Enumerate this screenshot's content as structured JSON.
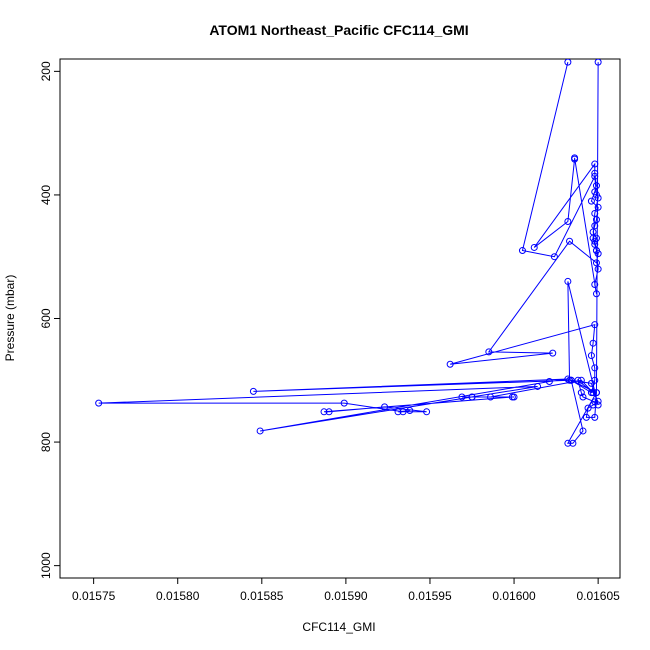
{
  "chart_data": {
    "type": "line",
    "title": "ATOM1 Northeast_Pacific CFC114_GMI",
    "xlabel": "CFC114_GMI",
    "ylabel": "Pressure (mbar)",
    "xlim": [
      0.01573,
      0.016063
    ],
    "ylim": [
      1020,
      180
    ],
    "y_reversed": true,
    "x_ticks": [
      "0.01575",
      "0.01580",
      "0.01585",
      "0.01590",
      "0.01595",
      "0.01600",
      "0.01605"
    ],
    "x_tick_values": [
      0.01575,
      0.0158,
      0.01585,
      0.0159,
      0.01595,
      0.016,
      0.01605
    ],
    "y_ticks": [
      "200",
      "400",
      "600",
      "800",
      "1000"
    ],
    "y_tick_values": [
      200,
      400,
      600,
      800,
      1000
    ],
    "grid": false,
    "legend": "none",
    "series": [
      {
        "color": "#0000ff",
        "marker": "open-circle",
        "x": [
          0.016032,
          0.016005,
          0.016024,
          0.016048,
          0.016049,
          0.01605,
          0.016048,
          0.016047,
          0.016048,
          0.016049,
          0.01605,
          0.016048,
          0.016049,
          0.016036,
          0.016036,
          0.016032,
          0.016012,
          0.016048,
          0.016048,
          0.016049,
          0.016048,
          0.016046,
          0.01605,
          0.016049,
          0.016048,
          0.016047,
          0.016049,
          0.016048,
          0.016049,
          0.01605,
          0.016049,
          0.016033,
          0.015985,
          0.016023,
          0.015962,
          0.016048,
          0.016047,
          0.016046,
          0.016048,
          0.016048,
          0.016046,
          0.016034,
          0.016046,
          0.01605,
          0.016032,
          0.016033,
          0.015845,
          0.016032,
          0.016021,
          0.015849,
          0.016014,
          0.015753,
          0.015899,
          0.015934,
          0.015938,
          0.015931,
          0.015948,
          0.015923,
          0.01589,
          0.015887,
          0.015999,
          0.015975,
          0.016,
          0.015975,
          0.015969,
          0.015986,
          0.01604,
          0.016047,
          0.016038,
          0.01604,
          0.016041,
          0.016048,
          0.01605,
          0.016047,
          0.016044,
          0.016043,
          0.016048,
          0.016049,
          0.016034,
          0.016041,
          0.016035,
          0.016032,
          0.016049,
          0.01605
        ],
        "y": [
          185,
          490,
          500,
          370,
          400,
          405,
          430,
          470,
          480,
          490,
          520,
          545,
          560,
          340,
          342,
          443,
          485,
          350,
          365,
          385,
          395,
          410,
          420,
          440,
          450,
          460,
          470,
          475,
          490,
          495,
          510,
          475,
          654,
          656,
          674,
          610,
          640,
          660,
          680,
          700,
          720,
          700,
          705,
          740,
          540,
          700,
          718,
          698,
          702,
          782,
          710,
          737,
          737,
          751,
          749,
          751,
          751,
          743,
          751,
          751,
          727,
          727,
          727,
          727,
          727,
          727,
          700,
          720,
          700,
          720,
          727,
          735,
          734,
          740,
          745,
          760,
          760,
          720,
          700,
          782,
          802,
          802,
          720,
          185
        ]
      }
    ]
  }
}
